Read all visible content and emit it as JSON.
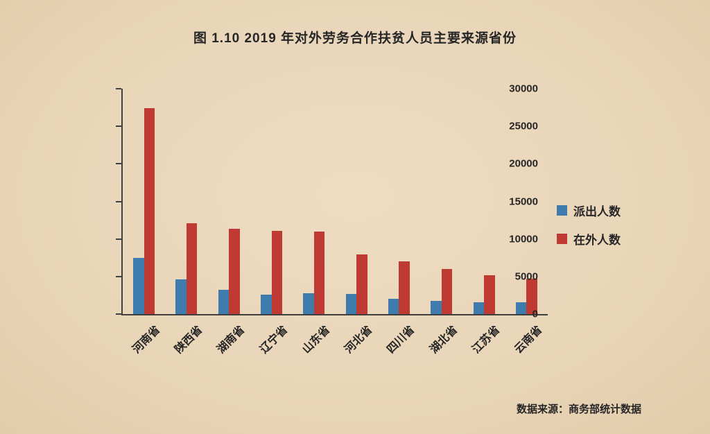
{
  "title": "图 1.10  2019 年对外劳务合作扶贫人员主要来源省份",
  "source_note": "数据来源：商务部统计数据",
  "colors": {
    "background": "#e9d5b8",
    "axis": "#3f3f3f",
    "text": "#262626",
    "blue_series": "#3e7cad",
    "red_series": "#bf3a32"
  },
  "chart_data": {
    "type": "bar",
    "title": "图 1.10  2019 年对外劳务合作扶贫人员主要来源省份",
    "categories": [
      "河南省",
      "陕西省",
      "湖南省",
      "辽宁省",
      "山东省",
      "河北省",
      "四川省",
      "湖北省",
      "江苏省",
      "云南省"
    ],
    "series": [
      {
        "name": "派出人数",
        "color": "#3e7cad",
        "values": [
          7500,
          4600,
          3200,
          2600,
          2800,
          2700,
          2000,
          1800,
          1600,
          1600
        ]
      },
      {
        "name": "在外人数",
        "color": "#bf3a32",
        "values": [
          27400,
          12100,
          11400,
          11100,
          11000,
          7900,
          7000,
          6000,
          5200,
          4700
        ]
      }
    ],
    "xlabel": "",
    "ylabel": "",
    "ylim": [
      0,
      30000
    ],
    "yticks": [
      0,
      5000,
      10000,
      15000,
      20000,
      25000,
      30000
    ],
    "grid": false,
    "legend_position": "right",
    "source": "数据来源：商务部统计数据"
  }
}
